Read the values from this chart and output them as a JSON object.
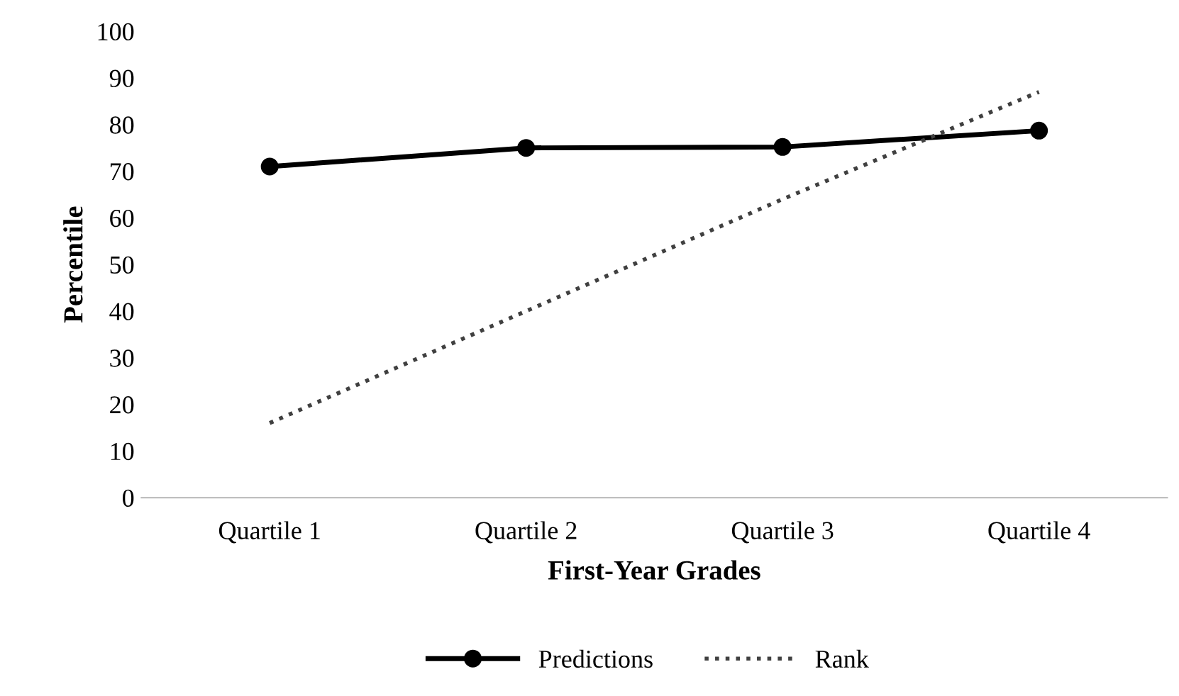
{
  "chart_data": {
    "type": "line",
    "xlabel": "First-Year Grades",
    "ylabel": "Percentile",
    "categories": [
      "Quartile 1",
      "Quartile 2",
      "Quartile 3",
      "Quartile 4"
    ],
    "ylim": [
      0,
      100
    ],
    "yticks": [
      0,
      10,
      20,
      30,
      40,
      50,
      60,
      70,
      80,
      90,
      100
    ],
    "grid": false,
    "legend": "bottom",
    "series": [
      {
        "name": "Predictions",
        "color": "#000000",
        "values": [
          71,
          75,
          75.2,
          78.7
        ],
        "marker": "circle",
        "line_style": "solid"
      },
      {
        "name": "Rank",
        "color": "#404040",
        "values": [
          16,
          40,
          64,
          87
        ],
        "marker": "none",
        "line_style": "dotted"
      }
    ]
  }
}
